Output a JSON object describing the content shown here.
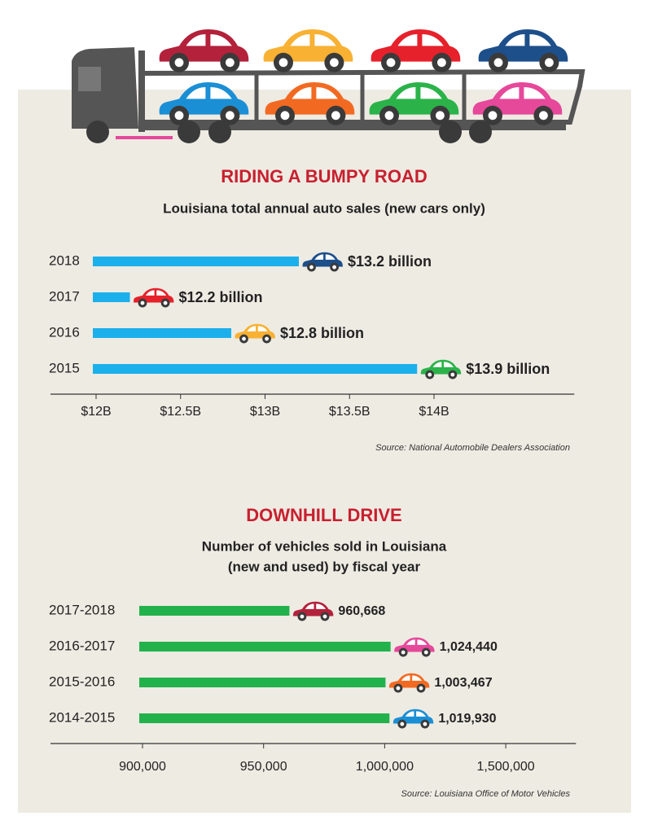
{
  "chart_data": [
    {
      "type": "bar",
      "orientation": "horizontal",
      "title": "RIDING A BUMPY ROAD",
      "subtitle": "Louisiana total annual auto sales (new cars only)",
      "categories": [
        "2018",
        "2017",
        "2016",
        "2015"
      ],
      "values": [
        13.2,
        12.2,
        12.8,
        13.9
      ],
      "value_labels": [
        "$13.2 billion",
        "$12.2 billion",
        "$12.8 billion",
        "$13.9 billion"
      ],
      "color": "#1bb0ec",
      "car_colors": [
        "#1d4f8a",
        "#e6212b",
        "#f8b133",
        "#2bb34a"
      ],
      "xlim": [
        11.73,
        14.83
      ],
      "xticks": [
        {
          "value": 12,
          "label": "$12B"
        },
        {
          "value": 12.5,
          "label": "$12.5B"
        },
        {
          "value": 13,
          "label": "$13B"
        },
        {
          "value": 13.5,
          "label": "$13.5B"
        },
        {
          "value": 14,
          "label": "$14B"
        }
      ],
      "source": "Source: National Automobile Dealers Association"
    },
    {
      "type": "bar",
      "orientation": "horizontal",
      "title": "DOWNHILL DRIVE",
      "subtitle": [
        "Number of vehicles sold in Louisiana",
        "(new and used) by fiscal year"
      ],
      "categories": [
        "2017-2018",
        "2016-2017",
        "2015-2016",
        "2014-2015"
      ],
      "values": [
        960668,
        1024440,
        1003467,
        1019930
      ],
      "value_labels": [
        "960,668",
        "1,024,440",
        "1,003,467",
        "1,019,930"
      ],
      "color": "#22b24c",
      "car_colors": [
        "#b3213b",
        "#e6489a",
        "#f26a22",
        "#1b8fd5"
      ],
      "xlim": [
        862000,
        1790000
      ],
      "xticks": [
        {
          "value": 900000,
          "label": "900,000"
        },
        {
          "value": 950000,
          "label": "950,000"
        },
        {
          "value": 1000000,
          "label": "1,000,000"
        },
        {
          "value": 1500000,
          "label": "1,500,000"
        }
      ],
      "source": "Source: Louisiana Office of Motor Vehicles"
    }
  ]
}
